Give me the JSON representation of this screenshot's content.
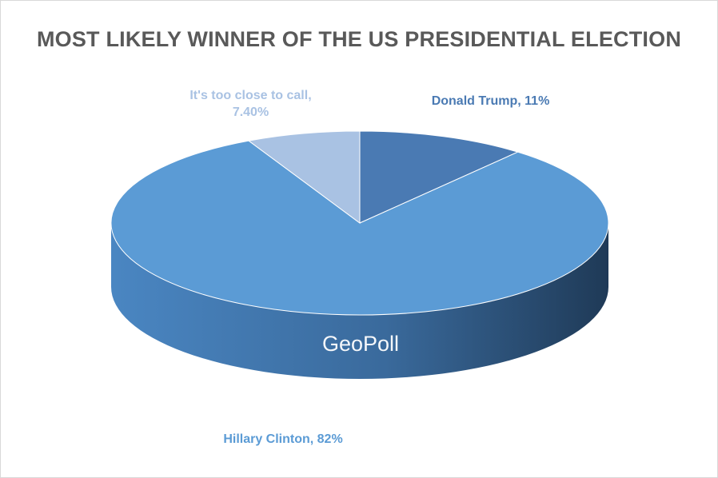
{
  "chart_data": {
    "type": "pie",
    "title": "MOST LIKELY WINNER OF THE US PRESIDENTIAL ELECTION",
    "slices": [
      {
        "label": "Donald Trump",
        "value": 11,
        "value_label": "11%",
        "color": "#4a7ab3"
      },
      {
        "label": "Hillary Clinton",
        "value": 82,
        "value_label": "82%",
        "color": "#5b9bd5"
      },
      {
        "label": "It's too close to call",
        "value": 7.4,
        "value_label": "7.40%",
        "color": "#a9c2e3"
      }
    ],
    "legend": "none",
    "style": "3d"
  },
  "labels": {
    "trump": "Donald Trump, 11%",
    "clinton": "Hillary Clinton, 82%",
    "close": "It's too close to call, 7.40%"
  },
  "watermark": "GeoPoll"
}
